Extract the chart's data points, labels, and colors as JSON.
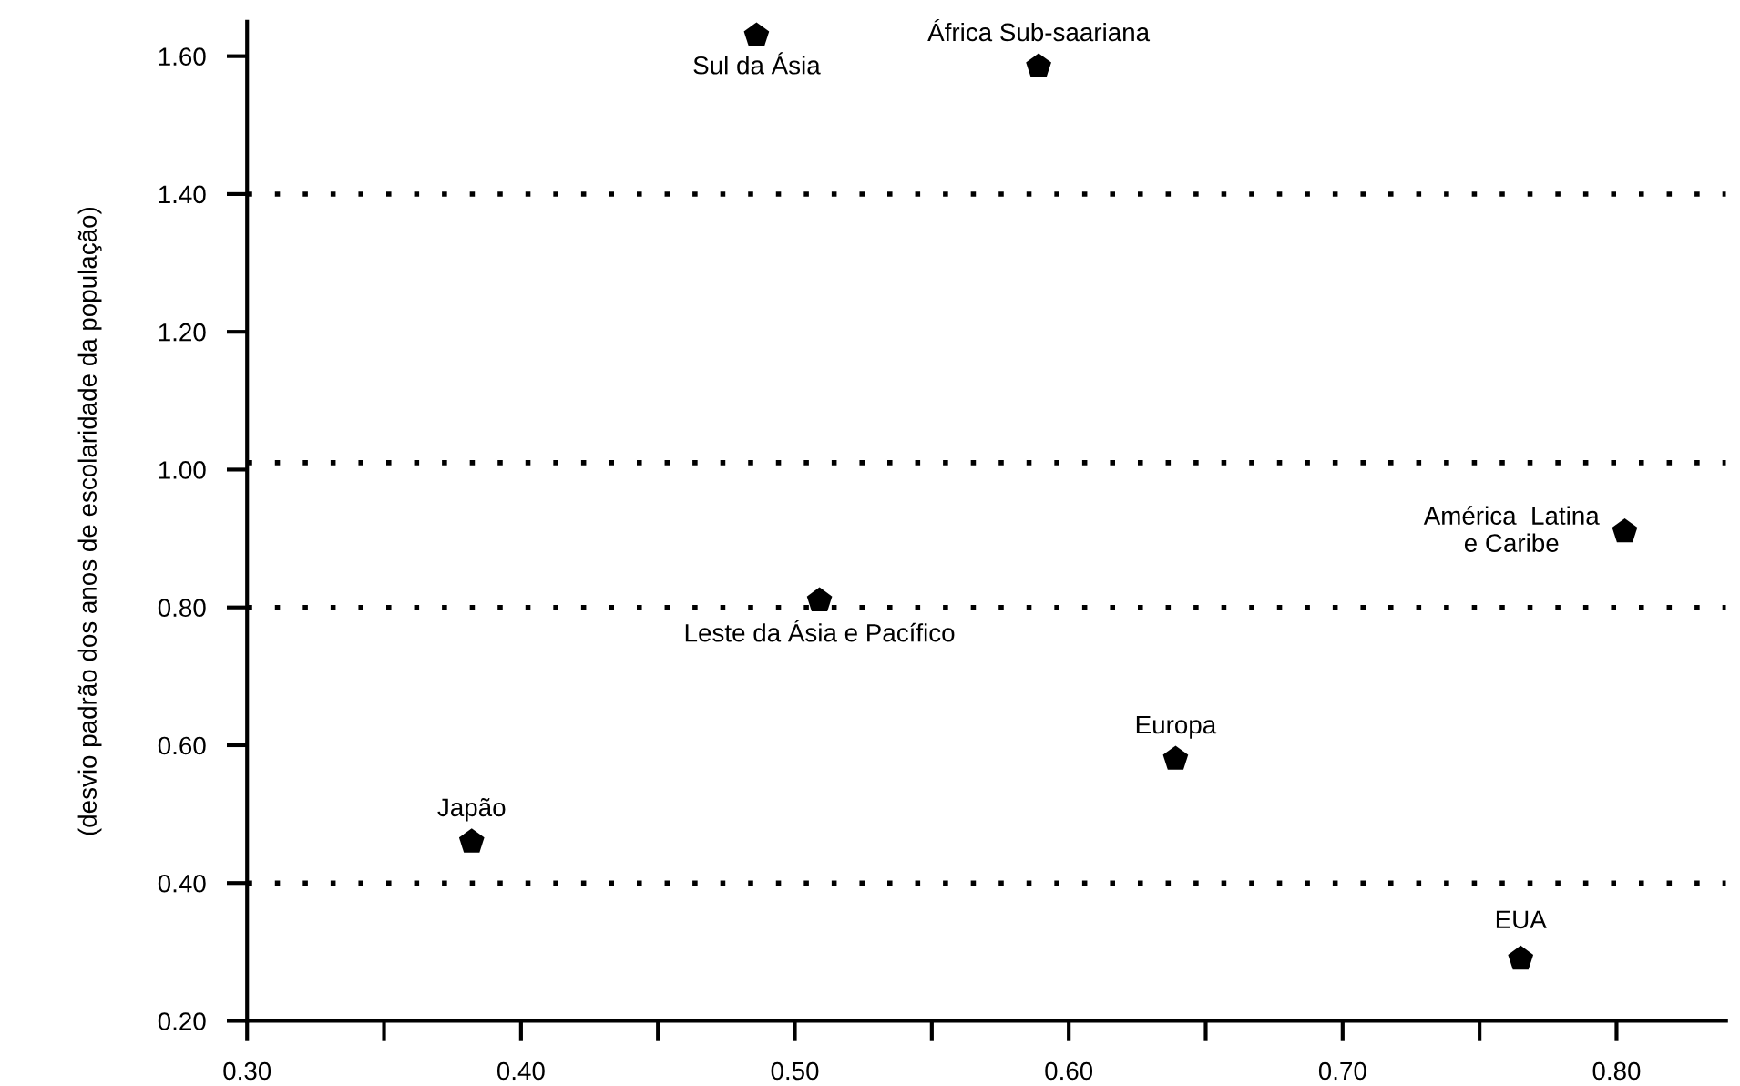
{
  "chart_data": {
    "type": "scatter",
    "ylabel": "(desvio padrão dos anos de escolaridade da população)",
    "x": [
      0.486,
      0.589,
      0.509,
      0.382,
      0.639,
      0.765,
      0.803
    ],
    "values": [
      1.63,
      1.585,
      0.81,
      0.46,
      0.58,
      0.29,
      0.91
    ],
    "color": "#000000",
    "xlim": [
      0.3,
      0.84
    ],
    "ylim": [
      0.2,
      1.65
    ],
    "xticks": [
      {
        "value": 0.3,
        "label": "0.30"
      },
      {
        "value": 0.35,
        "label": null
      },
      {
        "value": 0.4,
        "label": "0.40"
      },
      {
        "value": 0.45,
        "label": null
      },
      {
        "value": 0.5,
        "label": "0.50"
      },
      {
        "value": 0.55,
        "label": null
      },
      {
        "value": 0.6,
        "label": "0.60"
      },
      {
        "value": 0.65,
        "label": null
      },
      {
        "value": 0.7,
        "label": "0.70"
      },
      {
        "value": 0.75,
        "label": null
      },
      {
        "value": 0.8,
        "label": "0.80"
      }
    ],
    "yticks": [
      {
        "value": 0.2,
        "label": "0.20"
      },
      {
        "value": 0.4,
        "label": "0.40"
      },
      {
        "value": 0.6,
        "label": "0.60"
      },
      {
        "value": 0.8,
        "label": "0.80"
      },
      {
        "value": 1.0,
        "label": "1.00"
      },
      {
        "value": 1.2,
        "label": "1.20"
      },
      {
        "value": 1.4,
        "label": "1.40"
      },
      {
        "value": 1.6,
        "label": "1.60"
      }
    ],
    "ref_lines": [
      {
        "axis": "y",
        "value": 0.4,
        "color": "#000000",
        "line_style": "dotted"
      },
      {
        "axis": "y",
        "value": 0.8,
        "color": "#000000",
        "line_style": "dotted"
      },
      {
        "axis": "y",
        "value": 1.01,
        "color": "#000000",
        "line_style": "dotted"
      },
      {
        "axis": "y",
        "value": 1.4,
        "color": "#000000",
        "line_style": "dotted"
      }
    ],
    "annotations": [
      {
        "text": "Sul da Ásia",
        "x": 0.486,
        "y": 1.63
      },
      {
        "text": "África Sub-saariana",
        "x": 0.589,
        "y": 1.585
      },
      {
        "text": "Leste da Ásia e Pacífico",
        "x": 0.509,
        "y": 0.81
      },
      {
        "text": "Japão",
        "x": 0.382,
        "y": 0.46
      },
      {
        "text": "Europa",
        "x": 0.639,
        "y": 0.58
      },
      {
        "text": "EUA",
        "x": 0.765,
        "y": 0.29
      },
      {
        "text": "América  Latina\ne Caribe",
        "x": 0.803,
        "y": 0.91
      }
    ],
    "grid": false,
    "legend": false
  }
}
